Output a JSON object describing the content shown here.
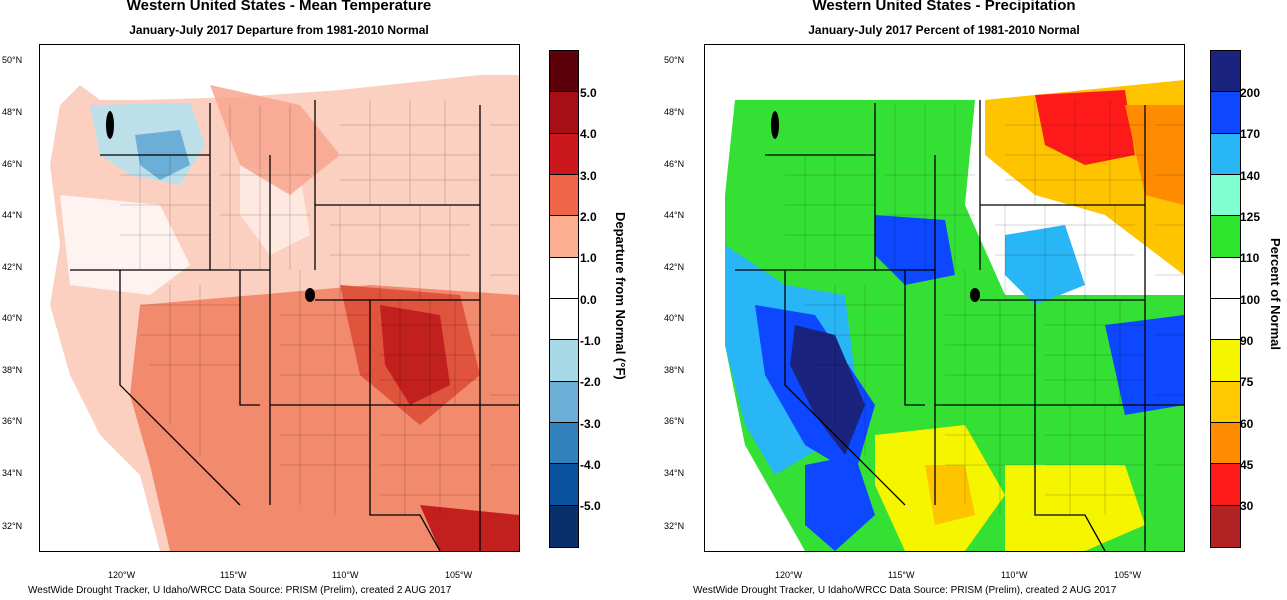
{
  "left": {
    "title": "Western United States - Mean Temperature",
    "subtitle": "January-July 2017  Departure from 1981-2010 Normal",
    "lat_ticks": [
      "50°N",
      "48°N",
      "46°N",
      "44°N",
      "42°N",
      "40°N",
      "38°N",
      "36°N",
      "34°N",
      "32°N"
    ],
    "lon_ticks": [
      "120°W",
      "115°W",
      "110°W",
      "105°W"
    ],
    "colorbar_title": "Departure from Normal (°F)",
    "colorbar_labels": [
      "5.0",
      "4.0",
      "3.0",
      "2.0",
      "1.0",
      "0.0",
      "-1.0",
      "-2.0",
      "-3.0",
      "-4.0",
      "-5.0"
    ],
    "colorbar_colors": [
      "#5c0009",
      "#a50f15",
      "#cb181d",
      "#ef6548",
      "#fcae91",
      "#ffffff",
      "#ffffff",
      "#a6d8e6",
      "#6baed6",
      "#3182bd",
      "#08519c",
      "#08306b"
    ],
    "credit": "WestWide Drought Tracker, U Idaho/WRCC Data Source: PRISM (Prelim), created  2 AUG 2017"
  },
  "right": {
    "title": "Western United States - Precipitation",
    "subtitle": "January-July 2017  Percent of 1981-2010 Normal",
    "lat_ticks": [
      "50°N",
      "48°N",
      "46°N",
      "44°N",
      "42°N",
      "40°N",
      "38°N",
      "36°N",
      "34°N",
      "32°N"
    ],
    "lon_ticks": [
      "120°W",
      "115°W",
      "110°W",
      "105°W"
    ],
    "colorbar_title": "Percent of Normal",
    "colorbar_labels": [
      "200",
      "170",
      "140",
      "125",
      "110",
      "100",
      "90",
      "75",
      "60",
      "45",
      "30"
    ],
    "colorbar_colors": [
      "#1a237e",
      "#0d47ff",
      "#29b6f6",
      "#80ffd0",
      "#2ee62e",
      "#ffffff",
      "#ffffff",
      "#f5f500",
      "#ffc800",
      "#ff8c00",
      "#ff1a1a",
      "#b22222"
    ],
    "credit": "WestWide Drought Tracker, U Idaho/WRCC Data Source: PRISM (Prelim), created  2 AUG 2017"
  }
}
